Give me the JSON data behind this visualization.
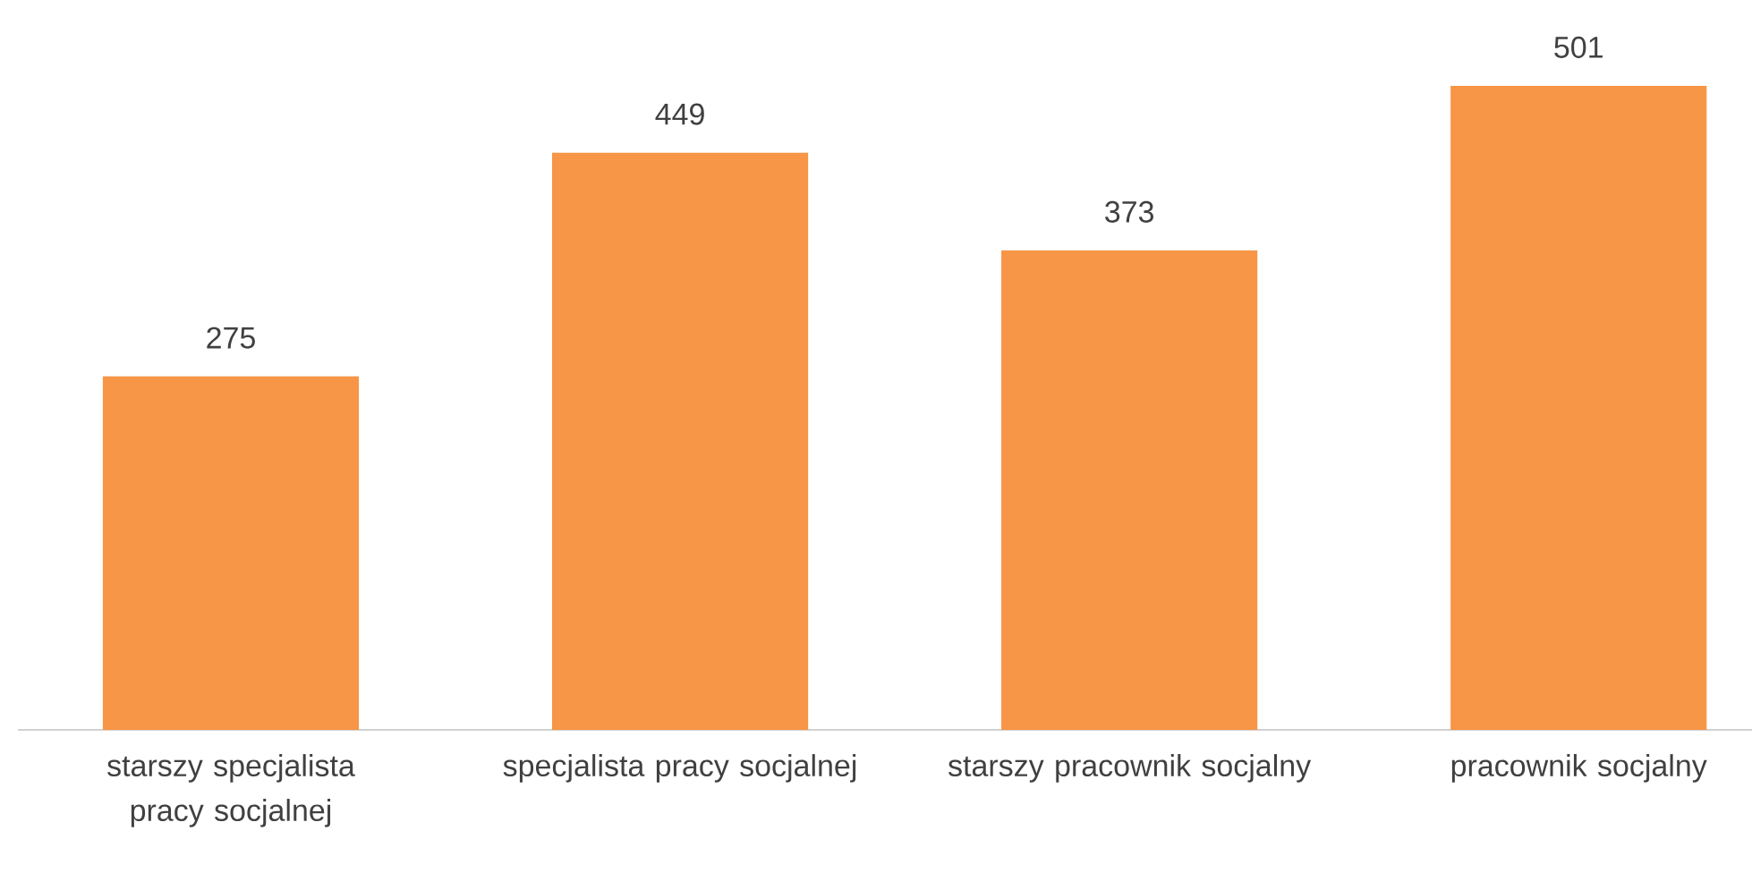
{
  "chart_data": {
    "type": "bar",
    "categories": [
      "starszy specjalista pracy socjalnej",
      "specjalista pracy socjalnej",
      "starszy pracownik socjalny",
      "pracownik socjalny"
    ],
    "values": [
      275,
      449,
      373,
      501
    ],
    "color": "#f79646",
    "data_labels": true
  }
}
